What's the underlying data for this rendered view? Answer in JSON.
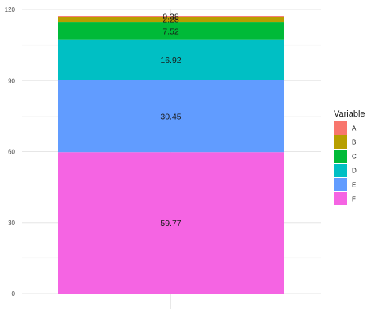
{
  "chart_data": {
    "type": "bar",
    "stacked": true,
    "categories": [
      ""
    ],
    "series": [
      {
        "name": "A",
        "values": [
          0.38
        ],
        "color": "#F8766D"
      },
      {
        "name": "B",
        "values": [
          2.28
        ],
        "color": "#B79F00"
      },
      {
        "name": "C",
        "values": [
          7.52
        ],
        "color": "#00BA38"
      },
      {
        "name": "D",
        "values": [
          16.92
        ],
        "color": "#00BFC4"
      },
      {
        "name": "E",
        "values": [
          30.45
        ],
        "color": "#619CFF"
      },
      {
        "name": "F",
        "values": [
          59.77
        ],
        "color": "#F564E3"
      }
    ],
    "ylim": [
      0,
      120
    ],
    "yticks": [
      0,
      30,
      60,
      90,
      120
    ],
    "grid": true,
    "legend": {
      "title": "Variable",
      "position": "right"
    },
    "title": "",
    "xlabel": "",
    "ylabel": ""
  }
}
